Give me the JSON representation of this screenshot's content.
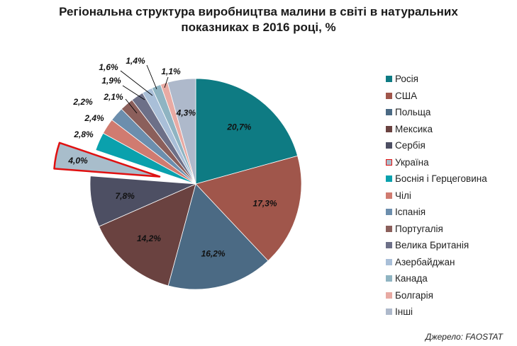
{
  "chart_data": {
    "type": "pie",
    "title_line1": "Регіональна структура виробництва малини в світі в натуральних",
    "title_line2": "показниках в 2016 році, %",
    "source": "Джерело: FAOSTAT",
    "start_angle_deg": 0,
    "direction": "clockwise",
    "legend_placement": "right",
    "exploded": "Україна",
    "slices": [
      {
        "name": "Росія",
        "value": 20.7,
        "label": "20,7%",
        "color": "#0e7b83"
      },
      {
        "name": "США",
        "value": 17.3,
        "label": "17,3%",
        "color": "#a0564b"
      },
      {
        "name": "Польща",
        "value": 16.2,
        "label": "16,2%",
        "color": "#4b6a84"
      },
      {
        "name": "Мексика",
        "value": 14.2,
        "label": "14,2%",
        "color": "#6a4240"
      },
      {
        "name": "Сербія",
        "value": 7.8,
        "label": "7,8%",
        "color": "#4d4f63"
      },
      {
        "name": "Україна",
        "value": 4.0,
        "label": "4,0%",
        "color": "#a8bdcb",
        "highlight": "#e01010"
      },
      {
        "name": "Боснія і Герцеговина",
        "value": 2.8,
        "label": "2,8%",
        "color": "#0aa1ad"
      },
      {
        "name": "Чілі",
        "value": 2.4,
        "label": "2,4%",
        "color": "#d07b70"
      },
      {
        "name": "Іспанія",
        "value": 2.2,
        "label": "2,2%",
        "color": "#6c8ead"
      },
      {
        "name": "Португалія",
        "value": 2.1,
        "label": "2,1%",
        "color": "#8b5f5b"
      },
      {
        "name": "Велика Британія",
        "value": 1.9,
        "label": "1,9%",
        "color": "#6d7088"
      },
      {
        "name": "Азербайджан",
        "value": 1.6,
        "label": "1,6%",
        "color": "#a9bfd8"
      },
      {
        "name": "Канада",
        "value": 1.4,
        "label": "1,4%",
        "color": "#8fb4c2"
      },
      {
        "name": "Болгарія",
        "value": 1.1,
        "label": "1,1%",
        "color": "#e8aaa3"
      },
      {
        "name": "Інші",
        "value": 4.3,
        "label": "4,3%",
        "color": "#aeb9cb"
      }
    ]
  }
}
